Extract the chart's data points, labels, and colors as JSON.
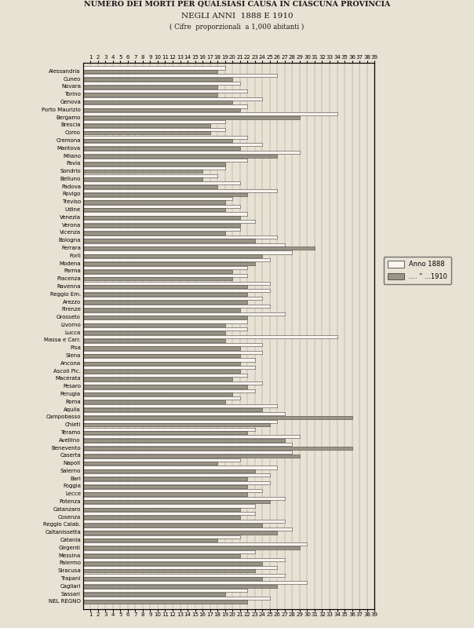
{
  "title1": "NUMERO DEI MORTI PER QUALSIASI CAUSA IN CIASCUNA PROVINCIA",
  "title2": "NEGLI ANNI  1888 E 1910",
  "title3": "( Cifre  proporzionali  a 1,000 abitanti )",
  "provinces": [
    "Alessandria",
    "Cuneo",
    "Novara",
    "Torino",
    "Genova",
    "Porto Maurizio",
    "Bergamo",
    "Brescia",
    "Como",
    "Cremona",
    "Mantova",
    "Milano",
    "Pavia",
    "Sondrio",
    "Belluno",
    "Padova",
    "Rovigo",
    "Treviso",
    "Udine",
    "Venezia",
    "Verona",
    "Vicenza",
    "Bologna",
    "Ferrara",
    "Forlì",
    "Modena",
    "Parma",
    "Piacenza",
    "Ravenna",
    "Reggio Em.",
    "Arezzo",
    "Firenze",
    "Grosseto",
    "Livorno",
    "Lucca",
    "Massa e Carr.",
    "Pisa",
    "Siena",
    "Ancona",
    "Ascoli Pic.",
    "Macerata",
    "Pesaro",
    "Perugia",
    "Roma",
    "Aquila",
    "Campobasso",
    "Chieti",
    "Teramo",
    "Avellino",
    "Benevento",
    "Caserta",
    "Napoli",
    "Salerno",
    "Bari",
    "Foggia",
    "Lecce",
    "Potenza",
    "Catanzaro",
    "Cosenza",
    "Reggio Calab.",
    "Caltanissetta",
    "Catania",
    "Girgenti",
    "Messina",
    "Palermo",
    "Siracusa",
    "Trapani",
    "Cagliari",
    "Sassari",
    "NEL REGNO"
  ],
  "val_1888": [
    19,
    26,
    21,
    22,
    24,
    22,
    34,
    19,
    19,
    22,
    24,
    29,
    22,
    19,
    18,
    21,
    26,
    20,
    21,
    22,
    23,
    21,
    26,
    27,
    28,
    25,
    22,
    22,
    25,
    25,
    24,
    25,
    27,
    22,
    22,
    34,
    24,
    24,
    23,
    23,
    22,
    24,
    23,
    21,
    26,
    27,
    26,
    23,
    29,
    28,
    28,
    21,
    26,
    25,
    25,
    24,
    27,
    23,
    23,
    27,
    28,
    21,
    30,
    23,
    27,
    26,
    27,
    30,
    22,
    25
  ],
  "val_1910": [
    18,
    20,
    18,
    18,
    20,
    21,
    29,
    17,
    17,
    20,
    21,
    26,
    19,
    16,
    16,
    18,
    22,
    19,
    19,
    21,
    21,
    19,
    23,
    31,
    24,
    23,
    20,
    20,
    22,
    22,
    22,
    21,
    22,
    19,
    19,
    19,
    21,
    21,
    21,
    21,
    20,
    22,
    20,
    19,
    24,
    36,
    25,
    22,
    27,
    36,
    29,
    18,
    23,
    22,
    22,
    22,
    25,
    21,
    21,
    24,
    26,
    18,
    29,
    21,
    24,
    23,
    24,
    26,
    19,
    22
  ],
  "color_1888": "#f8f4ee",
  "color_1910": "#9a9485",
  "edgecolor": "#444444",
  "bg_color": "#e8e2d4",
  "xlim_max": 39,
  "xticks": [
    1,
    2,
    3,
    4,
    5,
    6,
    7,
    8,
    9,
    10,
    11,
    12,
    13,
    14,
    15,
    16,
    17,
    18,
    19,
    20,
    21,
    22,
    23,
    24,
    25,
    26,
    27,
    28,
    29,
    30,
    31,
    32,
    33,
    34,
    35,
    36,
    37,
    38,
    39
  ],
  "legend_anno1888": "Anno 1888",
  "legend_anno1910": ".... ” ...1910"
}
